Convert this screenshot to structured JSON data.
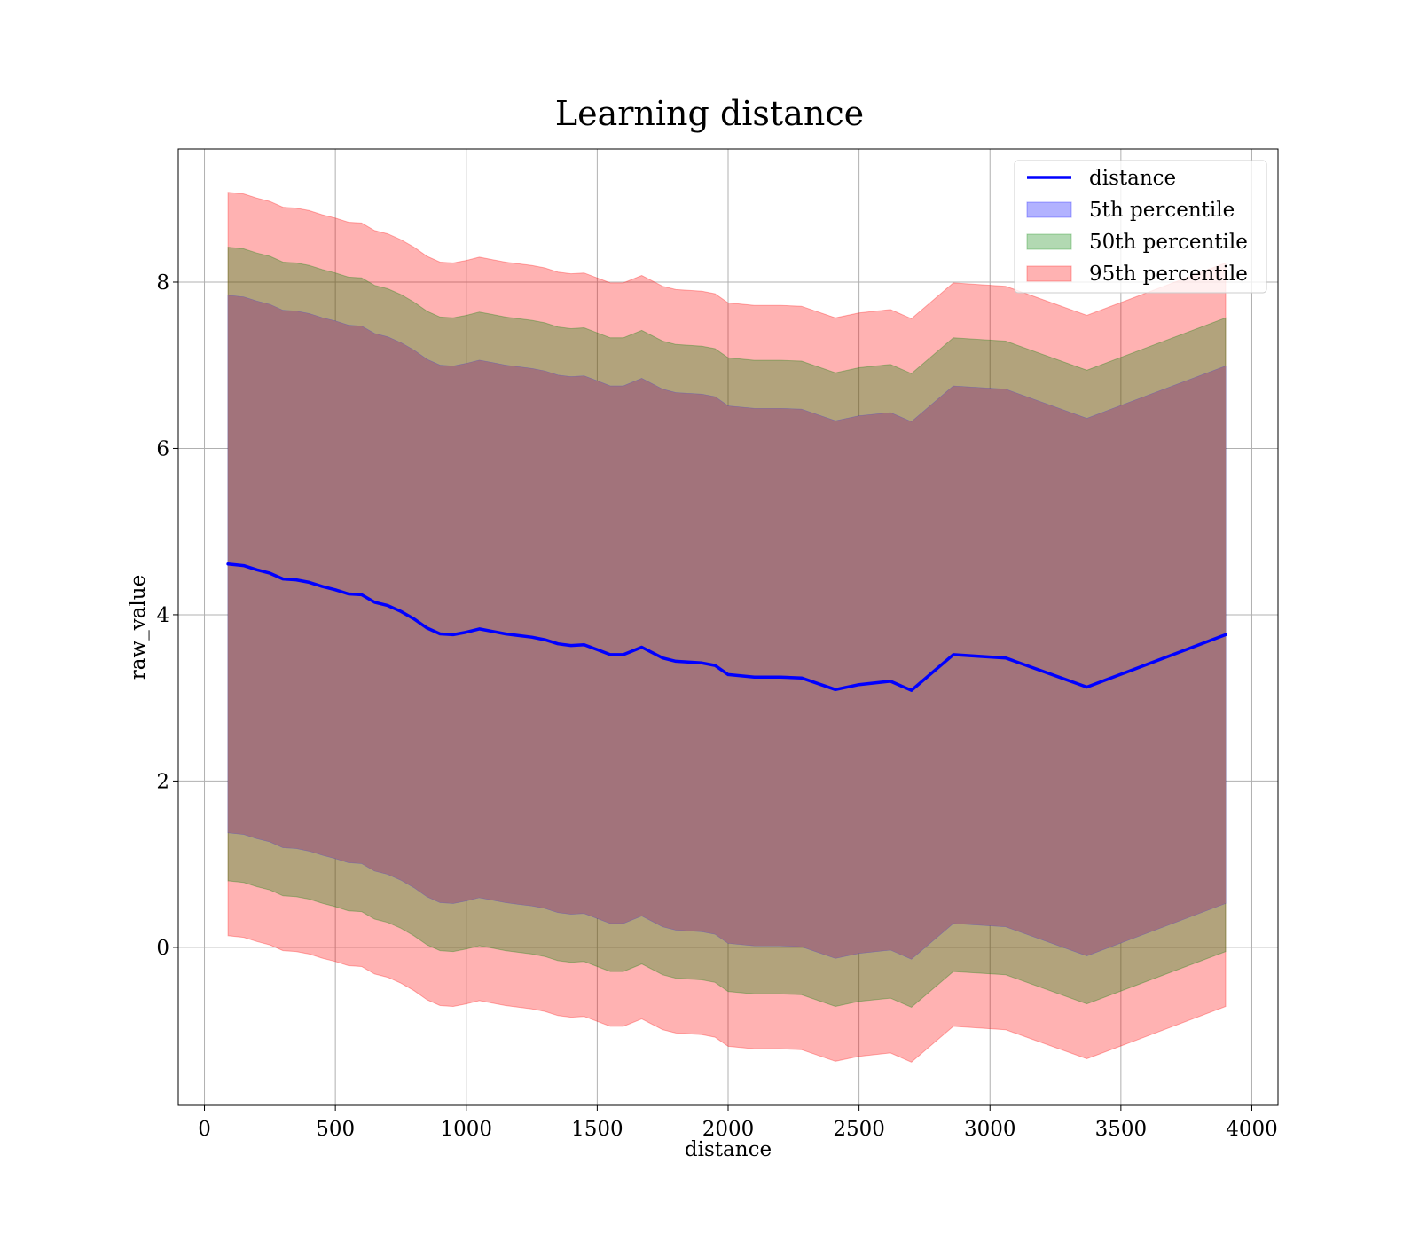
{
  "chart_data": {
    "type": "area",
    "title": "Learning distance",
    "xlabel": "distance",
    "ylabel": "raw_value",
    "xlim": [
      -100,
      4100
    ],
    "ylim": [
      -1.9,
      9.6
    ],
    "xticks": [
      0,
      500,
      1000,
      1500,
      2000,
      2500,
      3000,
      3500,
      4000
    ],
    "yticks": [
      0,
      2,
      4,
      6,
      8
    ],
    "grid": true,
    "legend_position": "top-right",
    "colors": {
      "line": "#0000ff",
      "band_5th": "#0000ff",
      "band_50th": "#008000",
      "band_95th": "#ff0000",
      "overlap": "#a2737b"
    },
    "legend": [
      {
        "label": "distance",
        "kind": "line",
        "color": "#0000ff"
      },
      {
        "label": "5th percentile",
        "kind": "patch",
        "color": "#0000ff"
      },
      {
        "label": "50th percentile",
        "kind": "patch",
        "color": "#008000"
      },
      {
        "label": "95th percentile",
        "kind": "patch",
        "color": "#ff0000"
      }
    ],
    "x": [
      90,
      150,
      200,
      250,
      300,
      350,
      400,
      450,
      500,
      550,
      600,
      650,
      700,
      750,
      800,
      850,
      900,
      950,
      1000,
      1050,
      1100,
      1150,
      1200,
      1250,
      1300,
      1350,
      1400,
      1450,
      1500,
      1550,
      1600,
      1670,
      1750,
      1800,
      1900,
      1950,
      2000,
      2100,
      2200,
      2280,
      2410,
      2500,
      2620,
      2700,
      2860,
      3060,
      3370,
      3900
    ],
    "series": [
      {
        "name": "distance",
        "values": [
          4.61,
          4.59,
          4.54,
          4.5,
          4.43,
          4.42,
          4.39,
          4.34,
          4.3,
          4.25,
          4.24,
          4.15,
          4.11,
          4.04,
          3.95,
          3.84,
          3.77,
          3.76,
          3.79,
          3.83,
          3.8,
          3.77,
          3.75,
          3.73,
          3.7,
          3.65,
          3.63,
          3.64,
          3.58,
          3.52,
          3.52,
          3.61,
          3.48,
          3.44,
          3.42,
          3.39,
          3.28,
          3.25,
          3.25,
          3.24,
          3.1,
          3.16,
          3.2,
          3.09,
          3.52,
          3.48,
          3.13,
          3.76
        ]
      }
    ],
    "bands": [
      {
        "name": "95th percentile",
        "lower": [
          0.14,
          0.12,
          0.07,
          0.03,
          -0.04,
          -0.05,
          -0.08,
          -0.13,
          -0.17,
          -0.22,
          -0.23,
          -0.32,
          -0.36,
          -0.43,
          -0.52,
          -0.63,
          -0.7,
          -0.71,
          -0.68,
          -0.64,
          -0.67,
          -0.7,
          -0.72,
          -0.74,
          -0.77,
          -0.82,
          -0.84,
          -0.83,
          -0.89,
          -0.95,
          -0.95,
          -0.86,
          -0.99,
          -1.03,
          -1.05,
          -1.08,
          -1.19,
          -1.22,
          -1.22,
          -1.23,
          -1.37,
          -1.31,
          -1.27,
          -1.38,
          -0.95,
          -0.99,
          -1.34,
          -0.71
        ],
        "upper": [
          9.08,
          9.06,
          9.01,
          8.97,
          8.9,
          8.89,
          8.86,
          8.81,
          8.77,
          8.72,
          8.71,
          8.62,
          8.58,
          8.51,
          8.42,
          8.31,
          8.24,
          8.23,
          8.26,
          8.3,
          8.27,
          8.24,
          8.22,
          8.2,
          8.17,
          8.12,
          8.1,
          8.11,
          8.05,
          7.99,
          7.99,
          8.08,
          7.95,
          7.91,
          7.89,
          7.86,
          7.75,
          7.72,
          7.72,
          7.71,
          7.57,
          7.63,
          7.67,
          7.56,
          7.99,
          7.95,
          7.6,
          8.23
        ]
      },
      {
        "name": "50th percentile",
        "lower": [
          0.8,
          0.78,
          0.73,
          0.69,
          0.62,
          0.61,
          0.58,
          0.53,
          0.49,
          0.44,
          0.43,
          0.34,
          0.3,
          0.23,
          0.14,
          0.03,
          -0.04,
          -0.05,
          -0.02,
          0.02,
          -0.01,
          -0.04,
          -0.06,
          -0.08,
          -0.11,
          -0.16,
          -0.18,
          -0.17,
          -0.23,
          -0.29,
          -0.29,
          -0.2,
          -0.33,
          -0.37,
          -0.39,
          -0.42,
          -0.53,
          -0.56,
          -0.56,
          -0.57,
          -0.71,
          -0.65,
          -0.61,
          -0.72,
          -0.29,
          -0.33,
          -0.68,
          -0.05
        ],
        "upper": [
          8.42,
          8.4,
          8.35,
          8.31,
          8.24,
          8.23,
          8.2,
          8.15,
          8.11,
          8.06,
          8.05,
          7.96,
          7.92,
          7.85,
          7.76,
          7.65,
          7.58,
          7.57,
          7.6,
          7.64,
          7.61,
          7.58,
          7.56,
          7.54,
          7.51,
          7.46,
          7.44,
          7.45,
          7.39,
          7.33,
          7.33,
          7.42,
          7.29,
          7.25,
          7.23,
          7.2,
          7.09,
          7.06,
          7.06,
          7.05,
          6.91,
          6.97,
          7.01,
          6.9,
          7.33,
          7.29,
          6.94,
          7.57
        ]
      },
      {
        "name": "5th percentile",
        "lower": [
          1.38,
          1.36,
          1.31,
          1.27,
          1.2,
          1.19,
          1.16,
          1.11,
          1.07,
          1.02,
          1.01,
          0.92,
          0.88,
          0.81,
          0.72,
          0.61,
          0.54,
          0.53,
          0.56,
          0.6,
          0.57,
          0.54,
          0.52,
          0.5,
          0.47,
          0.42,
          0.4,
          0.41,
          0.35,
          0.29,
          0.29,
          0.38,
          0.25,
          0.21,
          0.19,
          0.16,
          0.05,
          0.02,
          0.02,
          0.01,
          -0.13,
          -0.07,
          -0.03,
          -0.14,
          0.29,
          0.25,
          -0.1,
          0.53
        ],
        "upper": [
          7.84,
          7.82,
          7.77,
          7.73,
          7.66,
          7.65,
          7.62,
          7.57,
          7.53,
          7.48,
          7.47,
          7.38,
          7.34,
          7.27,
          7.18,
          7.07,
          7.0,
          6.99,
          7.02,
          7.06,
          7.03,
          7.0,
          6.98,
          6.96,
          6.93,
          6.88,
          6.86,
          6.87,
          6.81,
          6.75,
          6.75,
          6.84,
          6.71,
          6.67,
          6.65,
          6.62,
          6.51,
          6.48,
          6.48,
          6.47,
          6.33,
          6.39,
          6.43,
          6.32,
          6.75,
          6.71,
          6.36,
          6.99
        ]
      }
    ]
  }
}
